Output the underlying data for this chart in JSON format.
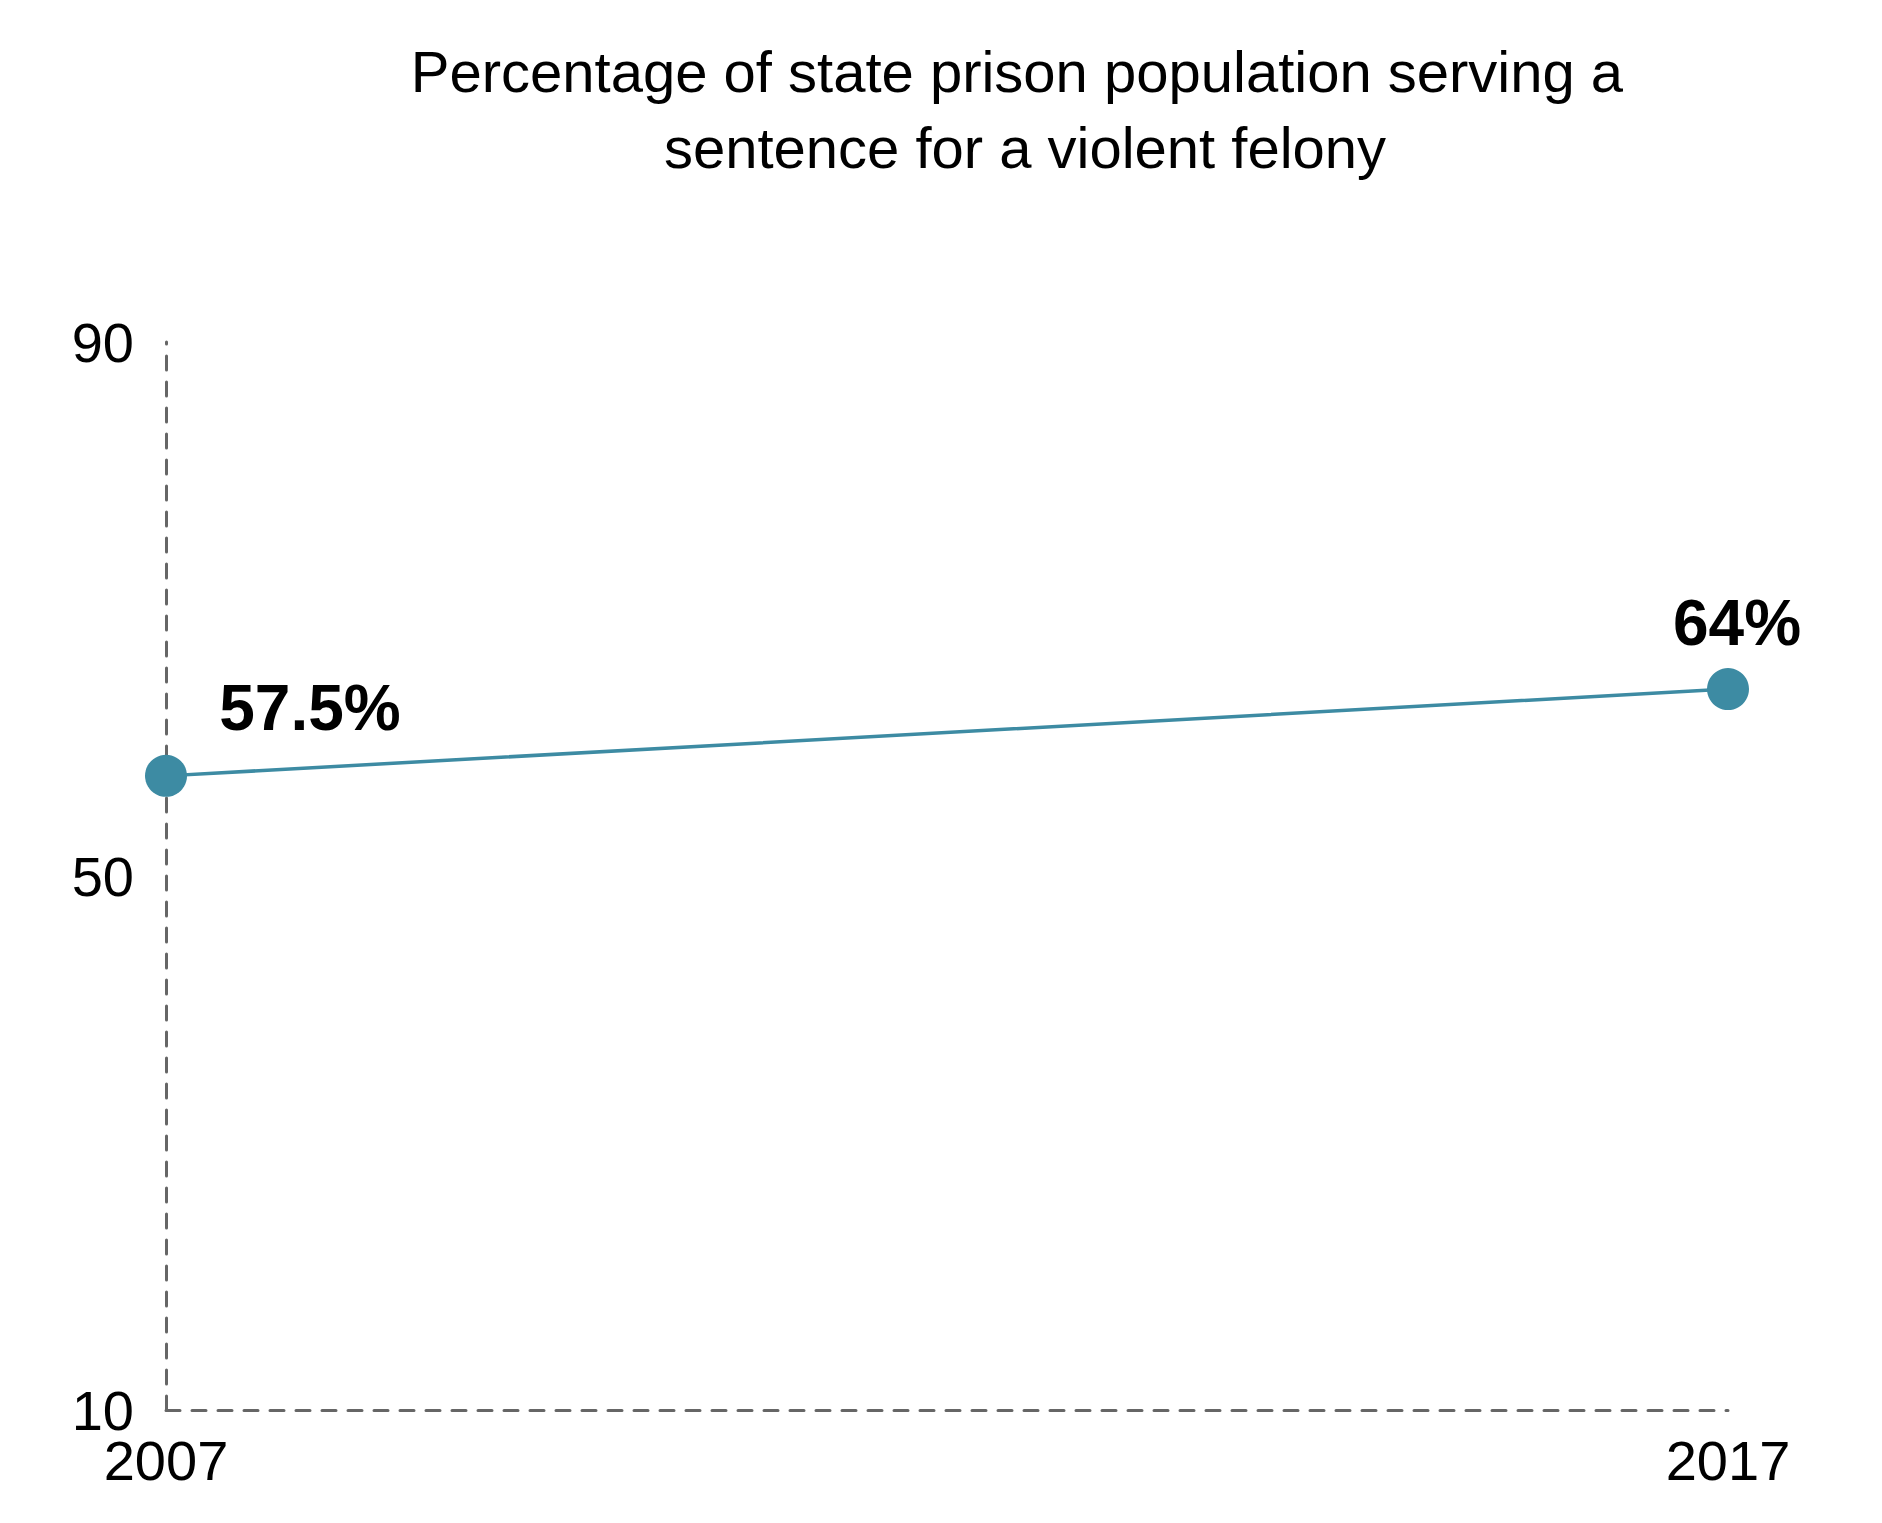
{
  "chart_data": {
    "type": "line",
    "title": "Percentage of state prison population serving a sentence for a violent felony",
    "x": [
      2007,
      2017
    ],
    "xlim": [
      2007,
      2017
    ],
    "xticks": [
      2007,
      2017
    ],
    "ylim": [
      10,
      90
    ],
    "yticks": [
      10,
      50,
      90
    ],
    "series": [
      {
        "color": "#3d8ba3",
        "values": [
          57.5,
          64
        ],
        "value_labels": [
          "57.5%",
          "64%"
        ]
      }
    ],
    "marker": "circle",
    "line_style": "solid",
    "grid": false
  }
}
